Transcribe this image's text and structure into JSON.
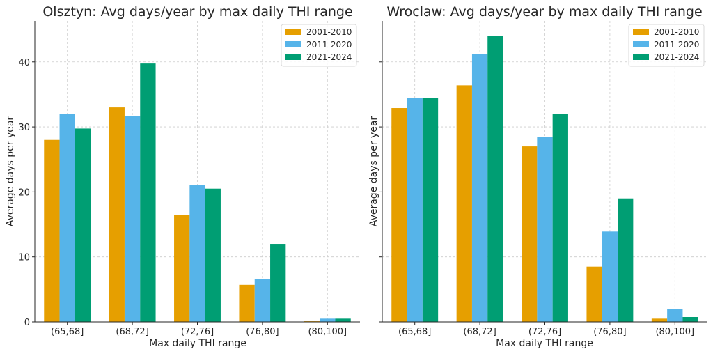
{
  "chart_data": [
    {
      "type": "bar",
      "title": "Olsztyn: Avg days/year by max daily THI range",
      "xlabel": "Max daily THI range",
      "ylabel": "Average days per year",
      "categories": [
        "(65,68]",
        "(68,72]",
        "(72,76]",
        "(76,80]",
        "(80,100]"
      ],
      "series": [
        {
          "name": "2001-2010",
          "values": [
            28.0,
            33.0,
            16.4,
            5.7,
            0.1
          ]
        },
        {
          "name": "2011-2020",
          "values": [
            32.0,
            31.7,
            21.1,
            6.6,
            0.5
          ]
        },
        {
          "name": "2021-2024",
          "values": [
            29.75,
            39.75,
            20.5,
            12.0,
            0.5
          ]
        }
      ],
      "ylim": [
        0,
        46.3
      ],
      "yticks": [
        0,
        10,
        20,
        30,
        40
      ],
      "show_ytick_labels": true,
      "grid": true,
      "legend_position": "top-right"
    },
    {
      "type": "bar",
      "title": "Wroclaw: Avg days/year by max daily THI range",
      "xlabel": "Max daily THI range",
      "ylabel": "Average days per year",
      "categories": [
        "(65,68]",
        "(68,72]",
        "(72,76]",
        "(76,80]",
        "(80,100]"
      ],
      "series": [
        {
          "name": "2001-2010",
          "values": [
            32.9,
            36.4,
            27.0,
            8.5,
            0.5
          ]
        },
        {
          "name": "2011-2020",
          "values": [
            34.5,
            41.2,
            28.5,
            13.9,
            2.0
          ]
        },
        {
          "name": "2021-2024",
          "values": [
            34.5,
            44.0,
            32.0,
            19.0,
            0.75
          ]
        }
      ],
      "ylim": [
        0,
        46.3
      ],
      "yticks": [
        0,
        10,
        20,
        30,
        40
      ],
      "show_ytick_labels": false,
      "grid": true,
      "legend_position": "top-right"
    }
  ],
  "colors": {
    "series": [
      "#E69F00",
      "#56B4E9",
      "#009E73"
    ]
  }
}
